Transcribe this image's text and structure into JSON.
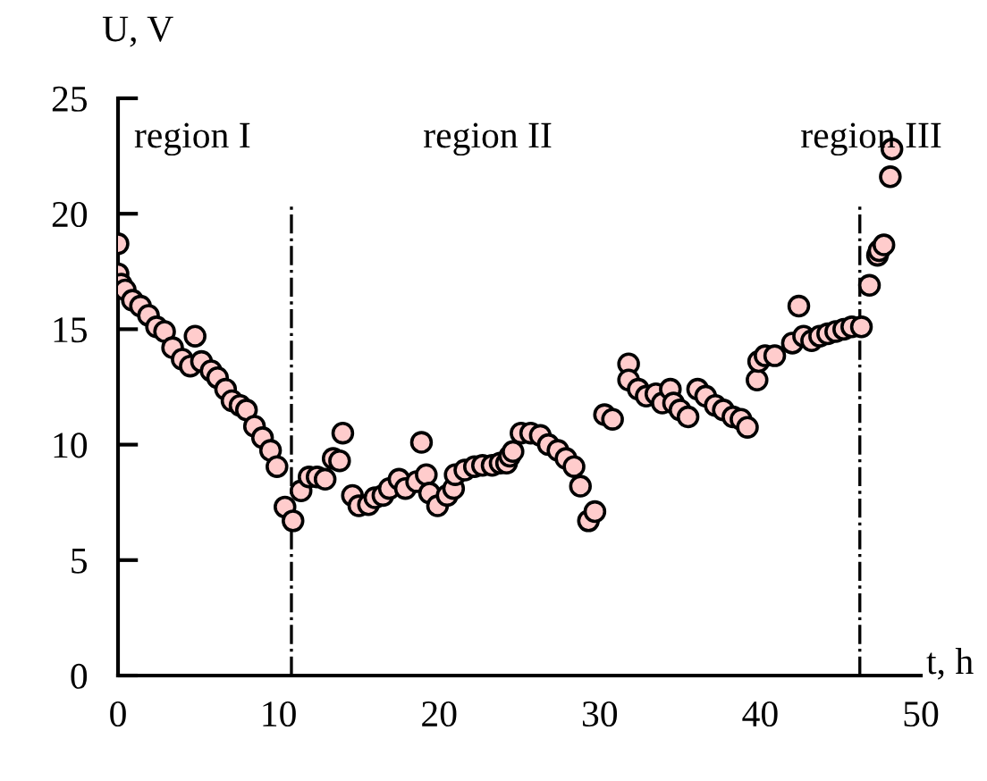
{
  "chart_data": {
    "type": "scatter",
    "xlabel": "t, h",
    "ylabel": "U, V",
    "xlim": [
      0,
      50
    ],
    "ylim": [
      0,
      25
    ],
    "xticks": [
      0,
      10,
      20,
      30,
      40,
      50
    ],
    "yticks": [
      0,
      5,
      10,
      15,
      20,
      25
    ],
    "marker": "circle",
    "grid": false,
    "legend": false,
    "annotations": [
      "region I",
      "region II",
      "region III"
    ],
    "ref_lines": [
      {
        "axis": "x",
        "value": 10.8,
        "line_style": "dashdot",
        "color": "#000000"
      },
      {
        "axis": "x",
        "value": 46.2,
        "line_style": "dashdot",
        "color": "#000000"
      }
    ],
    "series": [
      {
        "color": "#ffcccc",
        "x": [
          0,
          0,
          0.2,
          0.45,
          0.9,
          1.4,
          1.9,
          2.4,
          2.9,
          3.4,
          4.0,
          4.5,
          4.8,
          5.2,
          5.8,
          6.2,
          6.7,
          7.1,
          7.6,
          8.0,
          8.5,
          9.0,
          9.5,
          9.9,
          10.4,
          10.9,
          11.4,
          11.9,
          12.4,
          12.9,
          13.4,
          13.8,
          14.0,
          14.6,
          15.0,
          15.6,
          16.0,
          16.5,
          16.9,
          17.5,
          17.9,
          18.6,
          18.9,
          19.2,
          19.4,
          19.9,
          20.5,
          20.9,
          21.0,
          21.6,
          22.2,
          22.7,
          23.3,
          23.8,
          24.2,
          24.4,
          24.6,
          25.1,
          25.7,
          26.3,
          26.8,
          27.4,
          27.9,
          28.4,
          28.8,
          29.3,
          29.7,
          30.3,
          30.8,
          31.8,
          31.8,
          32.4,
          32.9,
          33.5,
          33.9,
          34.4,
          34.6,
          35.0,
          35.5,
          36.1,
          36.6,
          37.2,
          37.7,
          38.3,
          38.8,
          39.2,
          39.8,
          39.9,
          40.3,
          40.9,
          42.0,
          42.4,
          42.7,
          43.2,
          43.7,
          44.2,
          44.7,
          45.2,
          45.7,
          46.3,
          46.8,
          47.3,
          47.4,
          47.7,
          48.1,
          48.2
        ],
        "values": [
          18.7,
          17.4,
          16.95,
          16.7,
          16.25,
          16.0,
          15.6,
          15.1,
          14.9,
          14.2,
          13.7,
          13.4,
          14.7,
          13.6,
          13.2,
          12.9,
          12.4,
          11.9,
          11.7,
          11.5,
          10.8,
          10.3,
          9.75,
          9.05,
          7.3,
          6.7,
          8.0,
          8.6,
          8.6,
          8.5,
          9.4,
          9.3,
          10.5,
          7.8,
          7.35,
          7.4,
          7.7,
          7.8,
          8.1,
          8.5,
          8.1,
          8.4,
          10.1,
          8.7,
          7.9,
          7.35,
          7.8,
          8.1,
          8.7,
          8.9,
          9.05,
          9.1,
          9.1,
          9.2,
          9.2,
          9.5,
          9.7,
          10.5,
          10.5,
          10.4,
          10.0,
          9.75,
          9.4,
          9.05,
          8.2,
          6.7,
          7.1,
          11.3,
          11.1,
          13.5,
          12.8,
          12.4,
          12.1,
          12.2,
          11.8,
          12.4,
          11.8,
          11.5,
          11.2,
          12.4,
          12.1,
          11.7,
          11.5,
          11.2,
          11.1,
          10.75,
          12.8,
          13.6,
          13.85,
          13.85,
          14.4,
          16.0,
          14.7,
          14.5,
          14.7,
          14.8,
          14.9,
          15.0,
          15.1,
          15.1,
          16.9,
          18.2,
          18.4,
          18.65,
          21.6,
          22.8
        ]
      }
    ]
  }
}
